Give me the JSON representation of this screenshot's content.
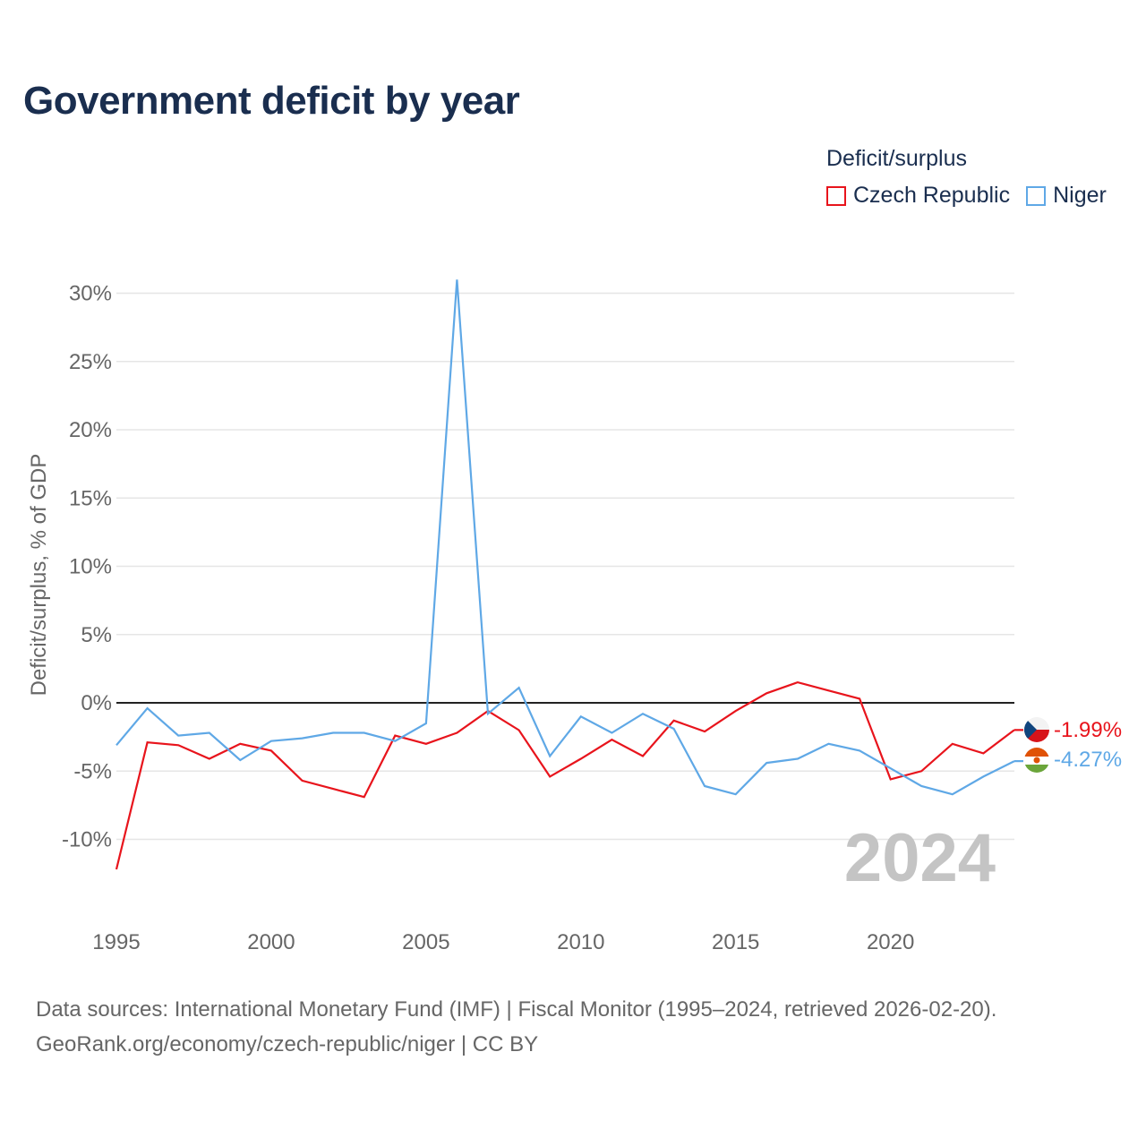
{
  "title": "Government deficit by year",
  "legend": {
    "title": "Deficit/surplus",
    "items": [
      {
        "label": "Czech Republic",
        "color": "#e8141c"
      },
      {
        "label": "Niger",
        "color": "#5fa8e6"
      }
    ]
  },
  "sources": {
    "line1": "Data sources: International Monetary Fund (IMF) | Fiscal Monitor (1995–2024, retrieved 2026-02-20).",
    "line2": "GeoRank.org/economy/czech-republic/niger | CC BY"
  },
  "chart_data": {
    "type": "line",
    "title": "Government deficit by year",
    "ylabel": "Deficit/surplus, % of GDP",
    "xlabel": "",
    "year_label": "2024",
    "x": [
      1995,
      1996,
      1997,
      1998,
      1999,
      2000,
      2001,
      2002,
      2003,
      2004,
      2005,
      2006,
      2007,
      2008,
      2009,
      2010,
      2011,
      2012,
      2013,
      2014,
      2015,
      2016,
      2017,
      2018,
      2019,
      2020,
      2021,
      2022,
      2023,
      2024
    ],
    "xlim": [
      1995,
      2024
    ],
    "ylim": [
      -14,
      32
    ],
    "y_ticks": [
      -10,
      -5,
      0,
      5,
      10,
      15,
      20,
      25,
      30
    ],
    "y_tick_labels": [
      "-10%",
      "-5%",
      "0%",
      "5%",
      "10%",
      "15%",
      "20%",
      "25%",
      "30%"
    ],
    "x_ticks": [
      1995,
      2000,
      2005,
      2010,
      2015,
      2020
    ],
    "x_tick_labels": [
      "1995",
      "2000",
      "2005",
      "2010",
      "2015",
      "2020"
    ],
    "grid": true,
    "series": [
      {
        "name": "Czech Republic",
        "color": "#e8141c",
        "end_label": "-1.99%",
        "values": [
          -12.2,
          -2.9,
          -3.1,
          -4.1,
          -3.0,
          -3.5,
          -5.7,
          -6.3,
          -6.9,
          -2.4,
          -3.0,
          -2.2,
          -0.6,
          -2.0,
          -5.4,
          -4.1,
          -2.7,
          -3.9,
          -1.3,
          -2.1,
          -0.6,
          0.7,
          1.5,
          0.9,
          0.3,
          -5.6,
          -5.0,
          -3.0,
          -3.7,
          -1.99
        ]
      },
      {
        "name": "Niger",
        "color": "#5fa8e6",
        "end_label": "-4.27%",
        "values": [
          -3.1,
          -0.4,
          -2.4,
          -2.2,
          -4.2,
          -2.8,
          -2.6,
          -2.2,
          -2.2,
          -2.8,
          -1.5,
          31.0,
          -0.8,
          1.1,
          -3.9,
          -1.0,
          -2.2,
          -0.8,
          -1.9,
          -6.1,
          -6.7,
          -4.4,
          -4.1,
          -3.0,
          -3.5,
          -4.8,
          -6.1,
          -6.7,
          -5.4,
          -4.27
        ]
      }
    ]
  }
}
